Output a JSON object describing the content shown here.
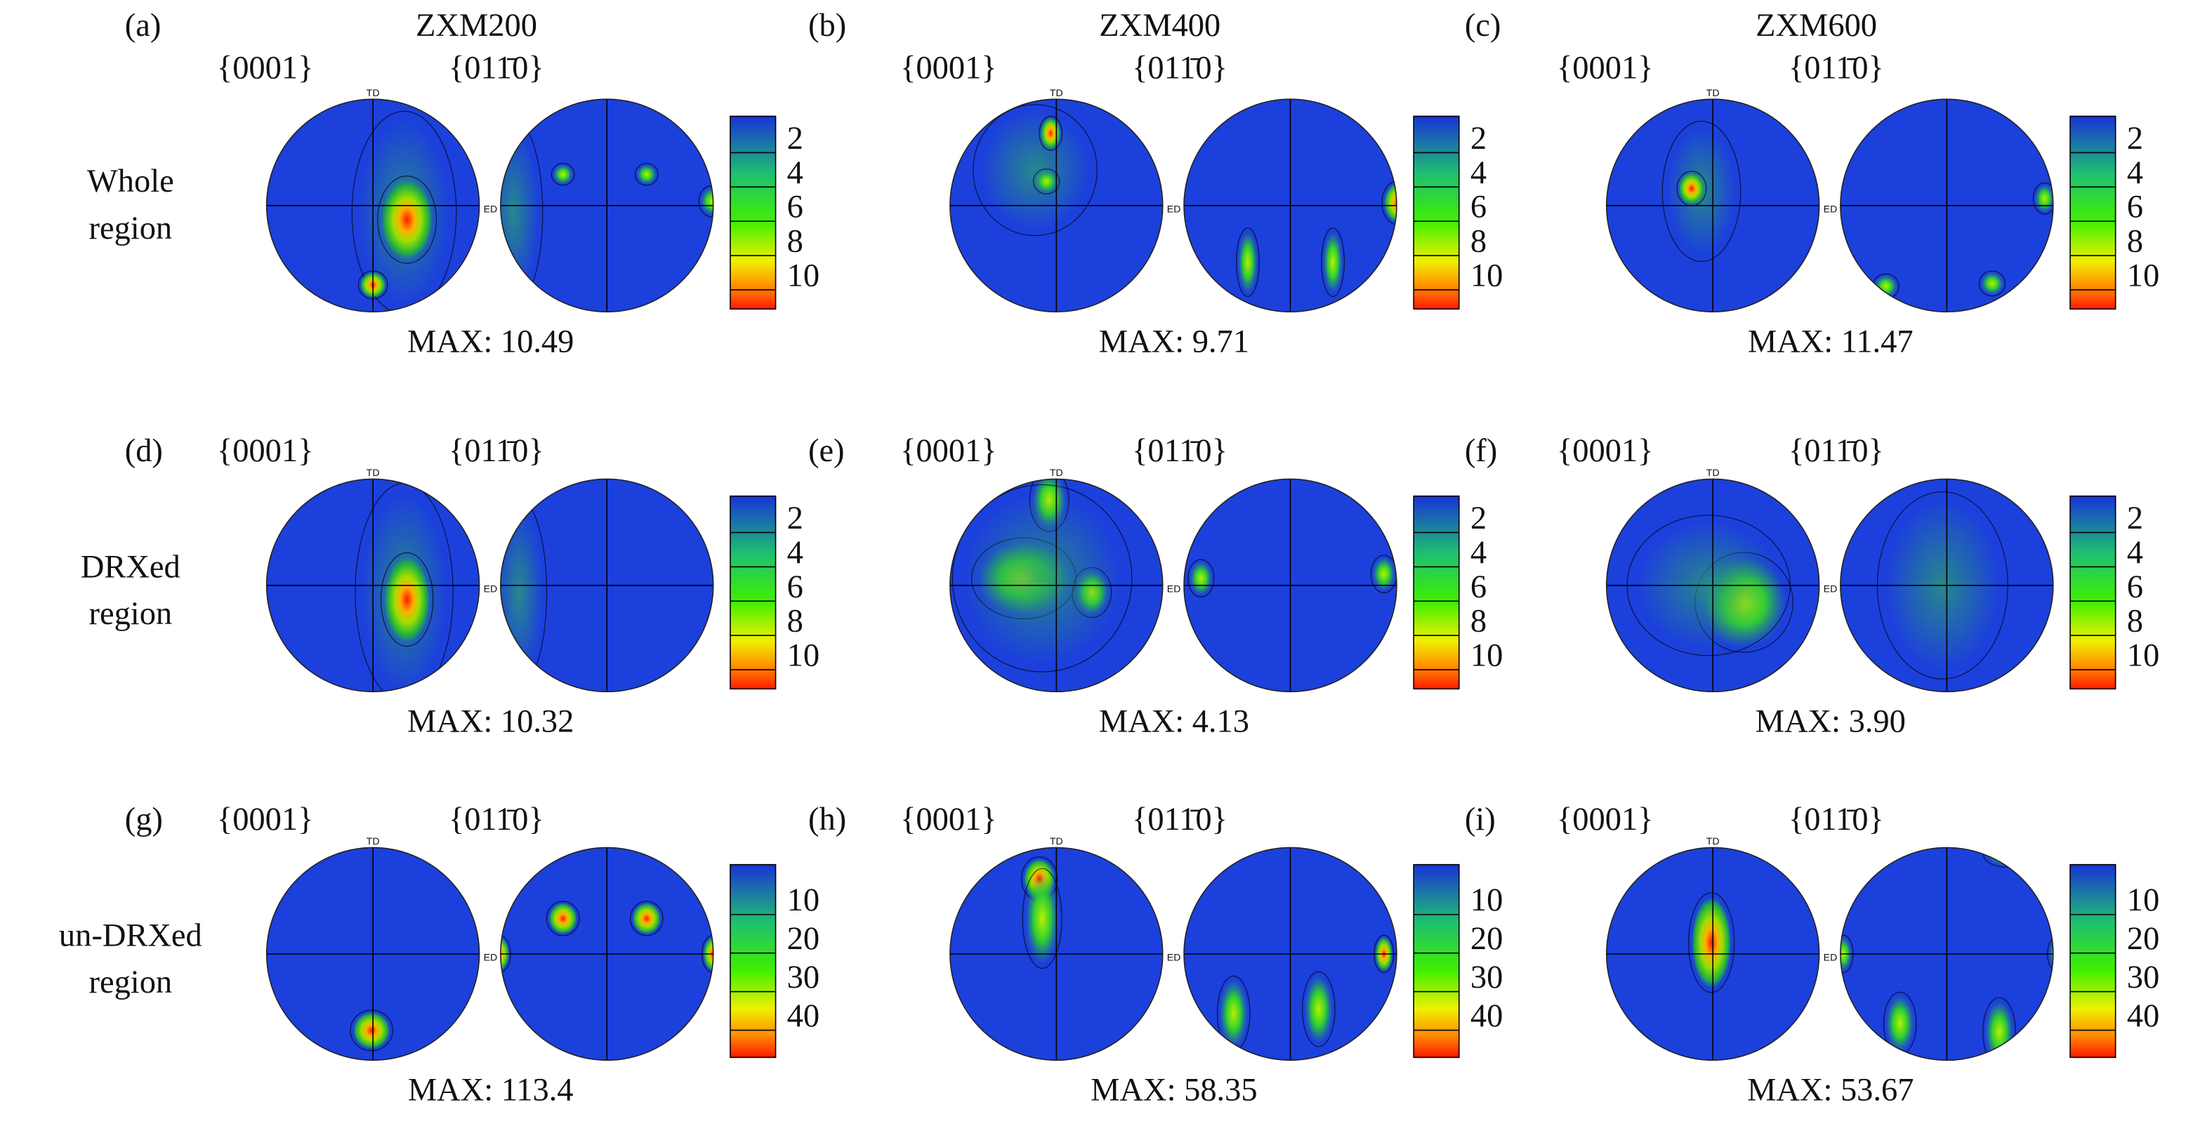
{
  "columns": [
    "ZXM200",
    "ZXM400",
    "ZXM600"
  ],
  "rows": [
    {
      "label": [
        "Whole",
        "region"
      ],
      "colorbar_ticks": [
        2,
        4,
        6,
        8,
        10
      ]
    },
    {
      "label": [
        "DRXed",
        "region"
      ],
      "colorbar_ticks": [
        2,
        4,
        6,
        8,
        10
      ]
    },
    {
      "label": [
        "un-DRXed",
        "region"
      ],
      "colorbar_ticks": [
        10,
        20,
        30,
        40
      ]
    }
  ],
  "pole_figures": [
    "{0001}",
    "{011̄0}"
  ],
  "axis_labels": {
    "td": "TD",
    "ed": "ED"
  },
  "panels": [
    {
      "letter": "(a)",
      "max": "MAX: 10.49"
    },
    {
      "letter": "(b)",
      "max": "MAX: 9.71"
    },
    {
      "letter": "(c)",
      "max": "MAX: 11.47"
    },
    {
      "letter": "(d)",
      "max": "MAX: 10.32"
    },
    {
      "letter": "(e)",
      "max": "MAX: 4.13"
    },
    {
      "letter": "(f)",
      "max": "MAX: 3.90"
    },
    {
      "letter": "(g)",
      "max": "MAX: 113.4"
    },
    {
      "letter": "(h)",
      "max": "MAX: 58.35"
    },
    {
      "letter": "(i)",
      "max": "MAX: 53.67"
    }
  ]
}
